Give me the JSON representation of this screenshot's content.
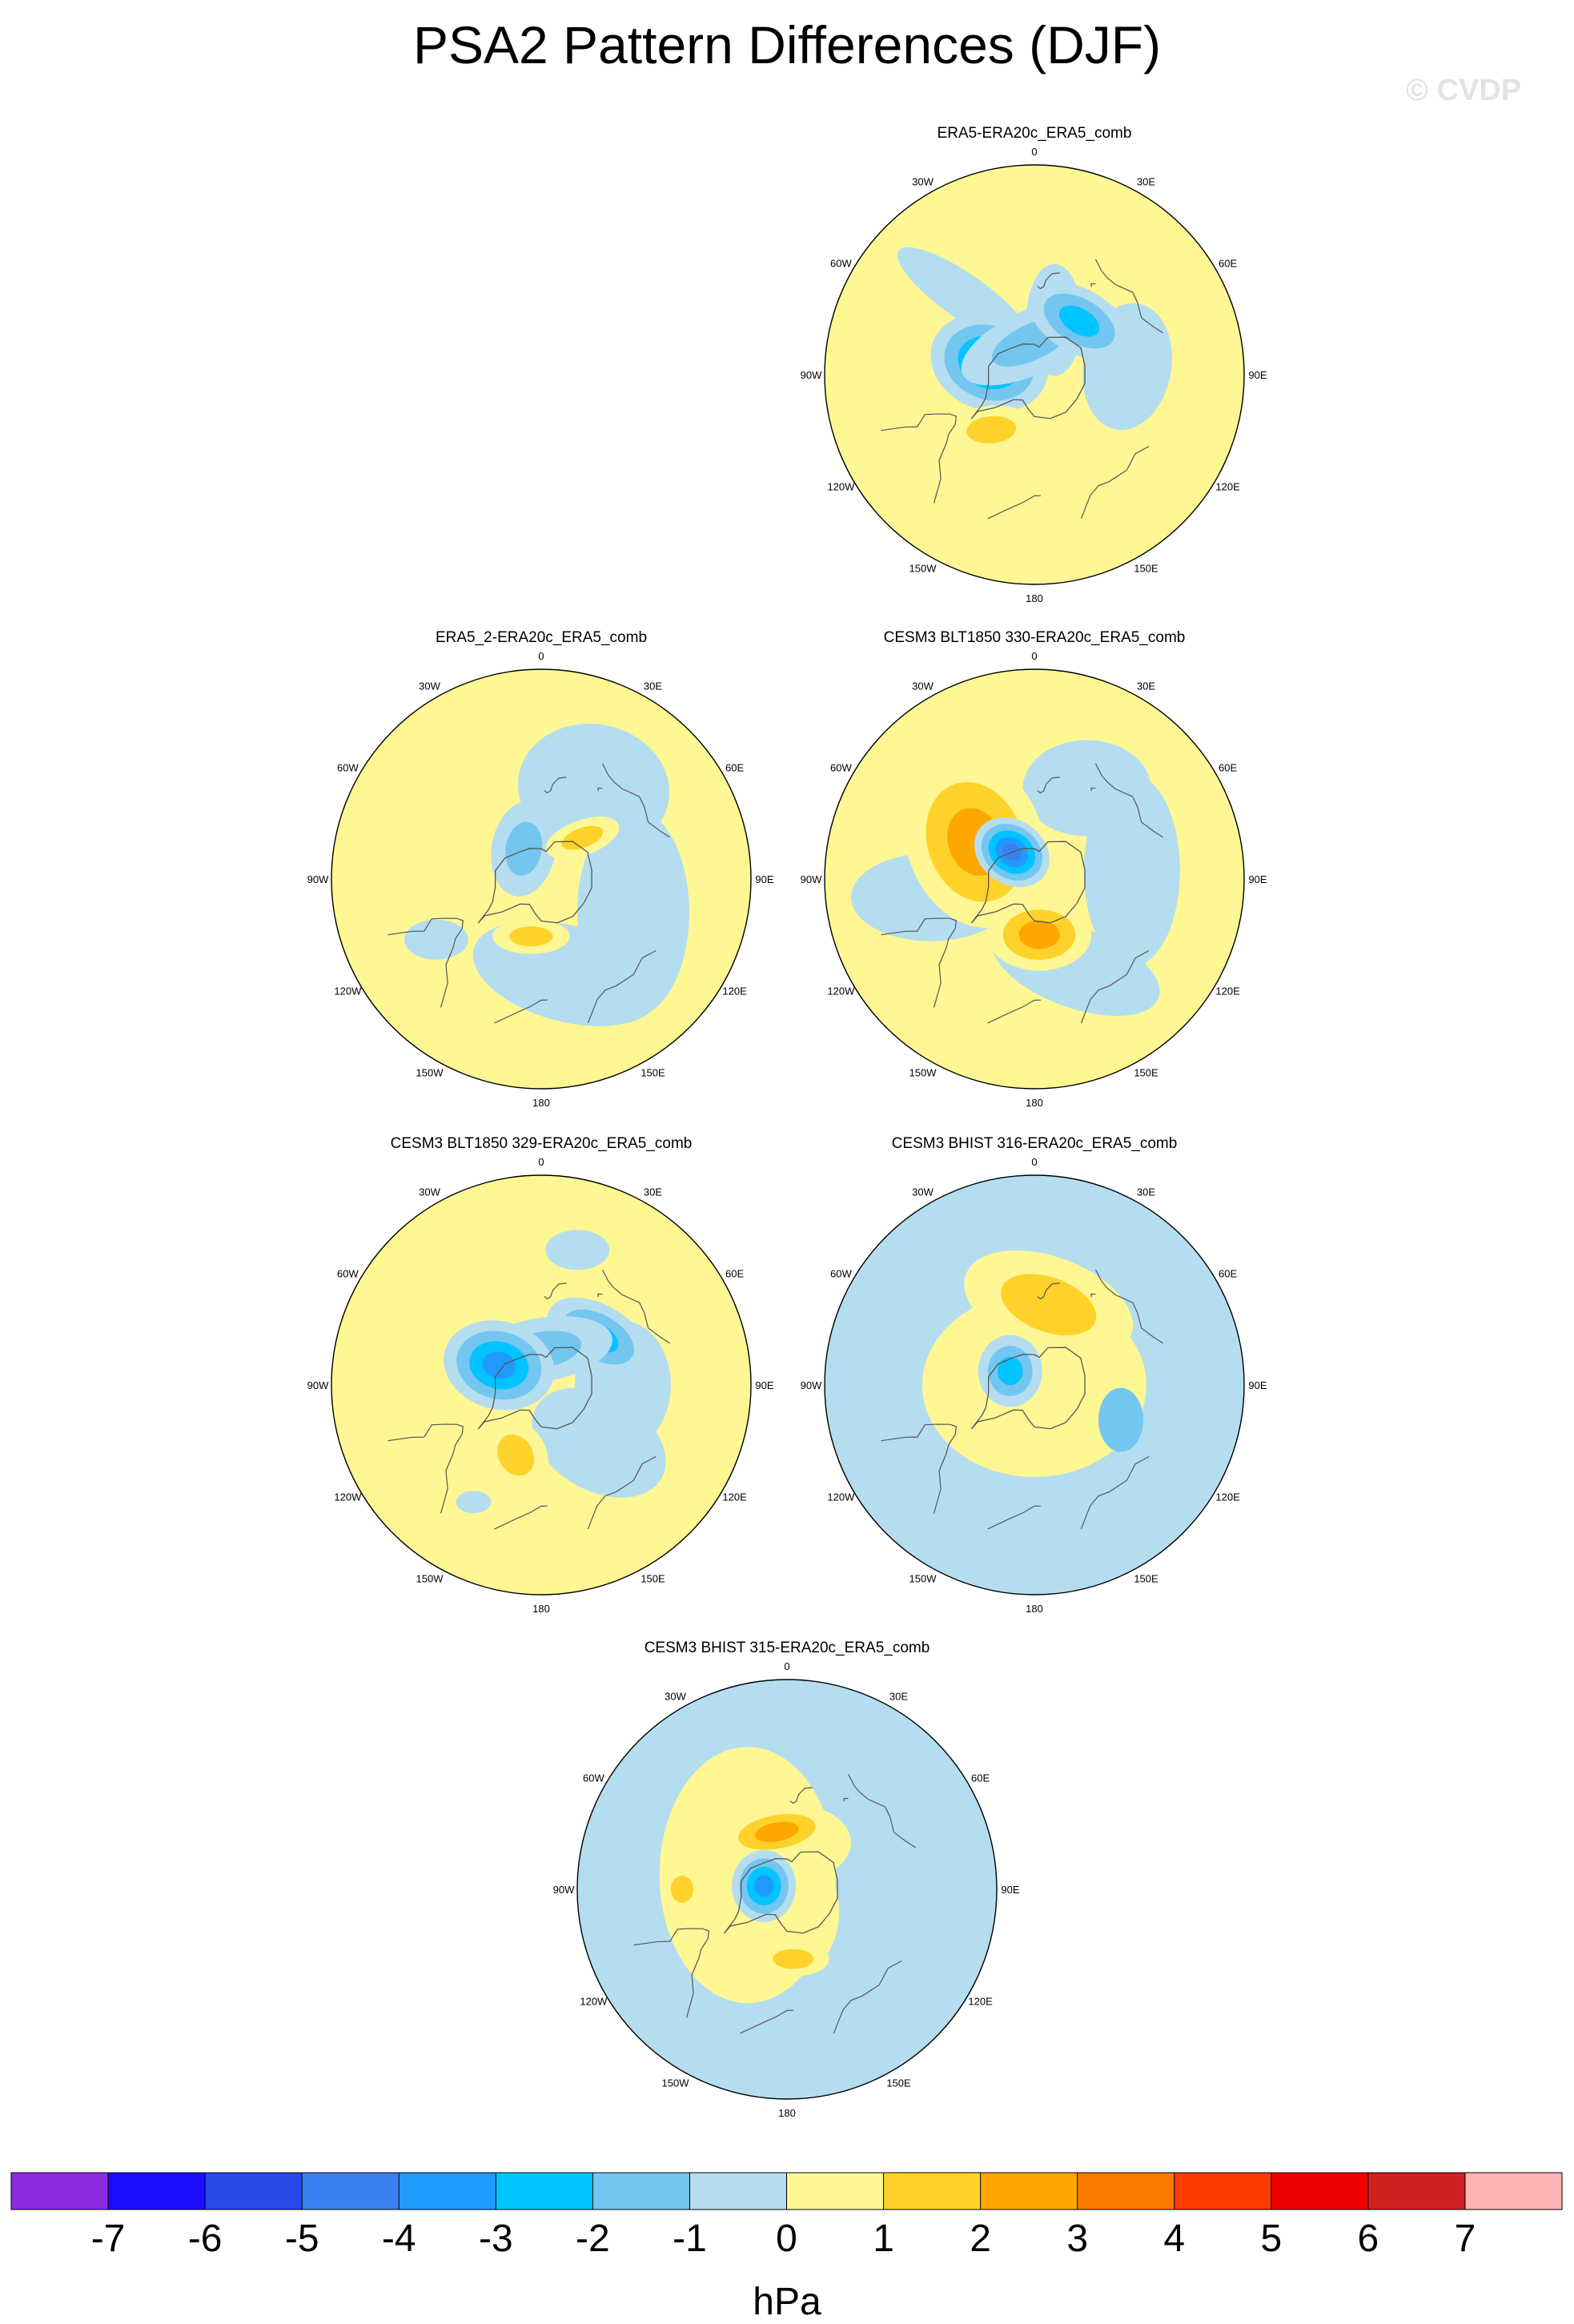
{
  "title": "PSA2 Pattern Differences (DJF)",
  "copyright": "© CVDP",
  "units": "hPa",
  "lon_labels": [
    "0",
    "30E",
    "60E",
    "90E",
    "120E",
    "150E",
    "180",
    "150W",
    "120W",
    "90W",
    "60W",
    "30W"
  ],
  "colors": {
    "le_-7": "#8a2be2",
    "-7_-6": "#1a0dff",
    "-6_-5": "#2a48e8",
    "-5_-4": "#3a7fee",
    "-4_-3": "#1f9bff",
    "-3_-2": "#00c4ff",
    "-2_-1": "#73c6f0",
    "-1_0": "#b5ddf0",
    "0_1": "#fef794",
    "1_2": "#fed22a",
    "2_3": "#fda700",
    "3_4": "#fd7a00",
    "4_5": "#fd3c00",
    "5_6": "#ee0000",
    "6_7": "#d02020",
    "ge_7": "#ffb3b3",
    "land": "#555555"
  },
  "colorbar": {
    "ticks": [
      "-7",
      "-6",
      "-5",
      "-4",
      "-3",
      "-2",
      "-1",
      "0",
      "1",
      "2",
      "3",
      "4",
      "5",
      "6",
      "7"
    ],
    "bins": [
      "le_-7",
      "-7_-6",
      "-6_-5",
      "-5_-4",
      "-4_-3",
      "-3_-2",
      "-2_-1",
      "-1_0",
      "0_1",
      "1_2",
      "2_3",
      "3_4",
      "4_5",
      "5_6",
      "6_7",
      "ge_7"
    ]
  },
  "panels": [
    {
      "name": "ERA5-ERA20c_ERA5_comb",
      "background": "0_1",
      "features": [
        {
          "lon": 95,
          "colat": 40,
          "rx": 55,
          "ry": 80,
          "rot": 10,
          "bins": [
            "-1_0"
          ]
        },
        {
          "lon": 160,
          "colat": 25,
          "rx": 35,
          "ry": 70,
          "rot": 0,
          "bins": [
            "-1_0"
          ]
        },
        {
          "lon": 222,
          "colat": 45,
          "rx": 100,
          "ry": 28,
          "rot": 35,
          "bins": [
            "-1_0"
          ]
        },
        {
          "lon": 255,
          "colat": 20,
          "rx": 75,
          "ry": 60,
          "rot": 20,
          "bins": [
            "-1_0",
            "-2_-1",
            "-3_-2",
            "-4_-3"
          ]
        },
        {
          "lon": 185,
          "colat": 14,
          "rx": 95,
          "ry": 40,
          "rot": -25,
          "bins": [
            "-1_0",
            "-2_-1"
          ]
        },
        {
          "lon": 140,
          "colat": 30,
          "rx": 70,
          "ry": 40,
          "rot": 30,
          "bins": [
            "-1_0",
            "-2_-1",
            "-3_-2"
          ]
        },
        {
          "lon": 322,
          "colat": 30,
          "rx": 55,
          "ry": 30,
          "rot": -5,
          "bins": [
            "0_1",
            "1_2"
          ]
        }
      ]
    },
    {
      "name": "ERA5_2-ERA20c_ERA5_comb",
      "background": "0_1",
      "features": [
        {
          "lon": 15,
          "colat": 42,
          "rx": 120,
          "ry": 60,
          "rot": 15,
          "bins": [
            "-1_0"
          ]
        },
        {
          "lon": 70,
          "colat": 42,
          "rx": 70,
          "ry": 130,
          "rot": 0,
          "bins": [
            "-1_0"
          ]
        },
        {
          "lon": 150,
          "colat": 45,
          "rx": 95,
          "ry": 80,
          "rot": 10,
          "bins": [
            "-1_0"
          ]
        },
        {
          "lon": 300,
          "colat": 52,
          "rx": 40,
          "ry": 25,
          "rot": 0,
          "bins": [
            "-1_0"
          ]
        },
        {
          "lon": 210,
          "colat": 15,
          "rx": 40,
          "ry": 60,
          "rot": 10,
          "bins": [
            "-1_0",
            "-2_-1"
          ]
        },
        {
          "lon": 350,
          "colat": 25,
          "rx": 48,
          "ry": 22,
          "rot": 0,
          "bins": [
            "0_1",
            "1_2"
          ]
        },
        {
          "lon": 135,
          "colat": 25,
          "rx": 48,
          "ry": 22,
          "rot": -20,
          "bins": [
            "0_1",
            "1_2"
          ]
        }
      ]
    },
    {
      "name": "CESM3 BLT1850 330-ERA20c_ERA5_comb",
      "background": "0_1",
      "features": [
        {
          "lon": 280,
          "colat": 45,
          "rx": 100,
          "ry": 55,
          "rot": 0,
          "bins": [
            "-1_0"
          ]
        },
        {
          "lon": 25,
          "colat": 42,
          "rx": 110,
          "ry": 50,
          "rot": 20,
          "bins": [
            "-1_0"
          ]
        },
        {
          "lon": 95,
          "colat": 42,
          "rx": 60,
          "ry": 120,
          "rot": 0,
          "bins": [
            "-1_0"
          ]
        },
        {
          "lon": 150,
          "colat": 45,
          "rx": 80,
          "ry": 60,
          "rot": 0,
          "bins": [
            "-1_0"
          ]
        },
        {
          "lon": 238,
          "colat": 30,
          "rx": 85,
          "ry": 110,
          "rot": -20,
          "bins": [
            "0_1",
            "1_2",
            "2_3"
          ]
        },
        {
          "lon": 5,
          "colat": 24,
          "rx": 65,
          "ry": 45,
          "rot": 0,
          "bins": [
            "0_1",
            "1_2",
            "2_3"
          ]
        },
        {
          "lon": 220,
          "colat": 15,
          "rx": 50,
          "ry": 40,
          "rot": 35,
          "bins": [
            "-1_0",
            "-2_-1",
            "-3_-2",
            "-4_-3",
            "-5_-4"
          ]
        }
      ]
    },
    {
      "name": "CESM3 BLT1850 329-ERA20c_ERA5_comb",
      "background": "0_1",
      "features": [
        {
          "lon": 45,
          "colat": 35,
          "rx": 90,
          "ry": 60,
          "rot": 30,
          "bins": [
            "-1_0"
          ]
        },
        {
          "lon": 90,
          "colat": 35,
          "rx": 60,
          "ry": 80,
          "rot": 0,
          "bins": [
            "-1_0"
          ]
        },
        {
          "lon": 130,
          "colat": 32,
          "rx": 70,
          "ry": 40,
          "rot": 30,
          "bins": [
            "-1_0",
            "-2_-1",
            "-3_-2"
          ]
        },
        {
          "lon": 180,
          "colat": 15,
          "rx": 90,
          "ry": 40,
          "rot": -10,
          "bins": [
            "-1_0",
            "-2_-1"
          ]
        },
        {
          "lon": 245,
          "colat": 20,
          "rx": 70,
          "ry": 55,
          "rot": 15,
          "bins": [
            "-1_0",
            "-2_-1",
            "-3_-2",
            "-4_-3"
          ]
        },
        {
          "lon": 165,
          "colat": 60,
          "rx": 40,
          "ry": 25,
          "rot": 0,
          "bins": [
            "-1_0"
          ]
        },
        {
          "lon": 330,
          "colat": 58,
          "rx": 22,
          "ry": 14,
          "rot": 0,
          "bins": [
            "-1_0"
          ]
        },
        {
          "lon": 340,
          "colat": 32,
          "rx": 38,
          "ry": 48,
          "rot": -30,
          "bins": [
            "0_1",
            "1_2"
          ]
        }
      ]
    },
    {
      "name": "CESM3 BHIST 316-ERA20c_ERA5_comb",
      "background": "-1_0",
      "features": [
        {
          "lon": 0,
          "colat": 0,
          "rx": 140,
          "ry": 115,
          "rot": 0,
          "bins": [
            "0_1"
          ]
        },
        {
          "lon": 170,
          "colat": 35,
          "rx": 110,
          "ry": 60,
          "rot": 20,
          "bins": [
            "0_1",
            "1_2"
          ]
        },
        {
          "lon": 240,
          "colat": 12,
          "rx": 40,
          "ry": 45,
          "rot": 0,
          "bins": [
            "-1_0",
            "-2_-1",
            "-3_-2"
          ]
        },
        {
          "lon": 68,
          "colat": 40,
          "rx": 28,
          "ry": 40,
          "rot": 0,
          "bins": [
            "-2_-1"
          ]
        }
      ]
    },
    {
      "name": "CESM3 BHIST 315-ERA20c_ERA5_comb",
      "background": "-1_0",
      "features": [
        {
          "lon": 250,
          "colat": 18,
          "rx": 110,
          "ry": 160,
          "rot": 0,
          "bins": [
            "0_1"
          ]
        },
        {
          "lon": 10,
          "colat": 10,
          "rx": 60,
          "ry": 80,
          "rot": 0,
          "bins": [
            "0_1"
          ]
        },
        {
          "lon": 180,
          "colat": 20,
          "rx": 80,
          "ry": 50,
          "rot": 0,
          "bins": [
            "0_1"
          ]
        },
        {
          "lon": 270,
          "colat": 45,
          "rx": 25,
          "ry": 30,
          "rot": 0,
          "bins": [
            "0_1",
            "1_2"
          ]
        },
        {
          "lon": 5,
          "colat": 30,
          "rx": 45,
          "ry": 22,
          "rot": 0,
          "bins": [
            "0_1",
            "1_2"
          ]
        },
        {
          "lon": 190,
          "colat": 25,
          "rx": 70,
          "ry": 30,
          "rot": -10,
          "bins": [
            "0_1",
            "1_2",
            "2_3"
          ]
        },
        {
          "lon": 262,
          "colat": 10,
          "rx": 40,
          "ry": 45,
          "rot": 0,
          "bins": [
            "-1_0",
            "-2_-1",
            "-3_-2",
            "-4_-3"
          ]
        }
      ]
    }
  ]
}
